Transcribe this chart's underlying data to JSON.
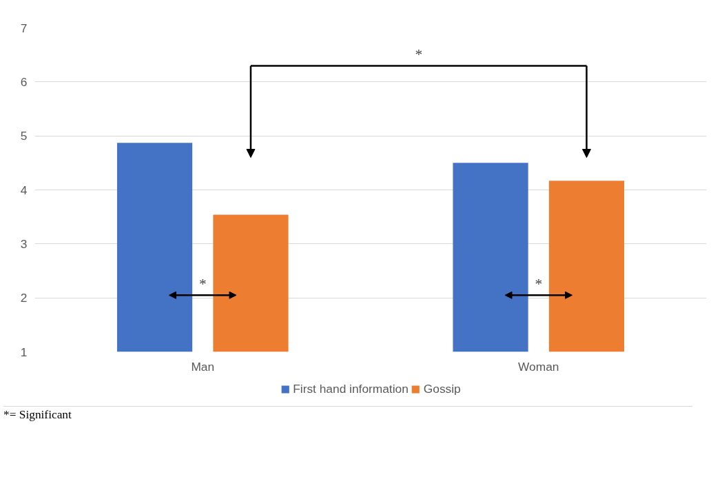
{
  "chart_data": {
    "type": "bar",
    "categories": [
      "Man",
      "Woman"
    ],
    "series": [
      {
        "name": "First hand information",
        "color": "#4472c4",
        "values": [
          4.87,
          4.5
        ]
      },
      {
        "name": "Gossip",
        "color": "#ed7d31",
        "values": [
          3.54,
          4.17
        ]
      }
    ],
    "ylim": [
      1,
      7
    ],
    "yticks": [
      1,
      2,
      3,
      4,
      5,
      6,
      7
    ],
    "grid": "y",
    "legend": "bottom",
    "annotations": [
      "*",
      "*",
      "*",
      "*= Significant"
    ]
  }
}
